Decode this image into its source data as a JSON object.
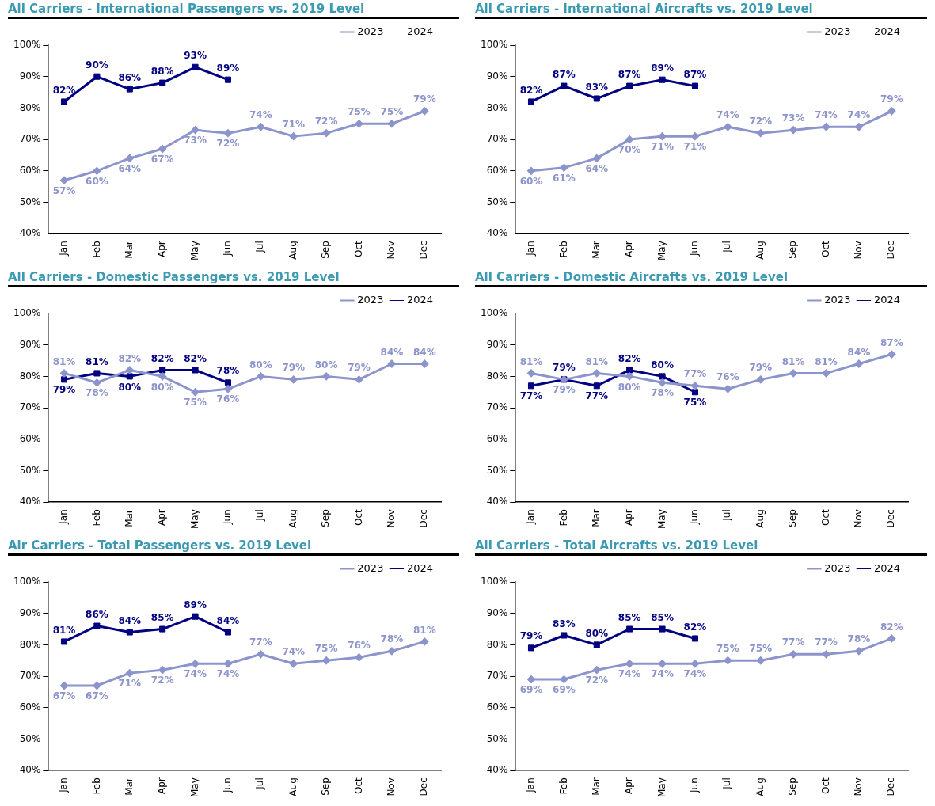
{
  "chart_data": [
    {
      "type": "line",
      "title": "All Carriers - International Passengers vs. 2019 Level",
      "categories": [
        "Jan",
        "Feb",
        "Mar",
        "Apr",
        "May",
        "Jun",
        "Jul",
        "Aug",
        "Sep",
        "Oct",
        "Nov",
        "Dec"
      ],
      "ylim": [
        40,
        100
      ],
      "yticks": [
        {
          "value": 40,
          "label": "40%"
        },
        {
          "value": 50,
          "label": "50%"
        },
        {
          "value": 60,
          "label": "60%"
        },
        {
          "value": 70,
          "label": "70%"
        },
        {
          "value": 80,
          "label": "80%"
        },
        {
          "value": 90,
          "label": "90%"
        },
        {
          "value": 100,
          "label": "100%"
        }
      ],
      "grid": false,
      "legend": "top right",
      "series": [
        {
          "name": "2023",
          "color": "#8c94cc",
          "marker": "diamond",
          "values": [
            57,
            60,
            64,
            67,
            73,
            72,
            74,
            71,
            72,
            75,
            75,
            79
          ],
          "value_labels": [
            "57%",
            "60%",
            "64%",
            "67%",
            "73%",
            "72%",
            "74%",
            "71%",
            "72%",
            "75%",
            "75%",
            "79%"
          ]
        },
        {
          "name": "2024",
          "color": "#000080",
          "marker": "square",
          "values": [
            82,
            90,
            86,
            88,
            93,
            89,
            null,
            null,
            null,
            null,
            null,
            null
          ],
          "value_labels": [
            "82%",
            "90%",
            "86%",
            "88%",
            "93%",
            "89%",
            null,
            null,
            null,
            null,
            null,
            null
          ]
        }
      ]
    },
    {
      "type": "line",
      "title": "All Carriers - International Aircrafts vs. 2019 Level",
      "categories": [
        "Jan",
        "Feb",
        "Mar",
        "Apr",
        "May",
        "Jun",
        "Jul",
        "Aug",
        "Sep",
        "Oct",
        "Nov",
        "Dec"
      ],
      "ylim": [
        40,
        100
      ],
      "yticks": [
        {
          "value": 40,
          "label": "40%"
        },
        {
          "value": 50,
          "label": "50%"
        },
        {
          "value": 60,
          "label": "60%"
        },
        {
          "value": 70,
          "label": "70%"
        },
        {
          "value": 80,
          "label": "80%"
        },
        {
          "value": 90,
          "label": "90%"
        },
        {
          "value": 100,
          "label": "100%"
        }
      ],
      "grid": false,
      "legend": "top right",
      "series": [
        {
          "name": "2023",
          "color": "#8c94cc",
          "marker": "diamond",
          "values": [
            60,
            61,
            64,
            70,
            71,
            71,
            74,
            72,
            73,
            74,
            74,
            79
          ],
          "value_labels": [
            "60%",
            "61%",
            "64%",
            "70%",
            "71%",
            "71%",
            "74%",
            "72%",
            "73%",
            "74%",
            "74%",
            "79%"
          ]
        },
        {
          "name": "2024",
          "color": "#000080",
          "marker": "square",
          "values": [
            82,
            87,
            83,
            87,
            89,
            87,
            null,
            null,
            null,
            null,
            null,
            null
          ],
          "value_labels": [
            "82%",
            "87%",
            "83%",
            "87%",
            "89%",
            "87%",
            null,
            null,
            null,
            null,
            null,
            null
          ]
        }
      ]
    },
    {
      "type": "line",
      "title": "All Carriers - Domestic Passengers vs. 2019 Level",
      "categories": [
        "Jan",
        "Feb",
        "Mar",
        "Apr",
        "May",
        "Jun",
        "Jul",
        "Aug",
        "Sep",
        "Oct",
        "Nov",
        "Dec"
      ],
      "ylim": [
        40,
        100
      ],
      "yticks": [
        {
          "value": 40,
          "label": "40%"
        },
        {
          "value": 50,
          "label": "50%"
        },
        {
          "value": 60,
          "label": "60%"
        },
        {
          "value": 70,
          "label": "70%"
        },
        {
          "value": 80,
          "label": "80%"
        },
        {
          "value": 90,
          "label": "90%"
        },
        {
          "value": 100,
          "label": "100%"
        }
      ],
      "grid": false,
      "legend": "top right",
      "series": [
        {
          "name": "2023",
          "color": "#8c94cc",
          "marker": "diamond",
          "values": [
            81,
            78,
            82,
            80,
            75,
            76,
            80,
            79,
            80,
            79,
            84,
            84
          ],
          "value_labels": [
            "81%",
            "78%",
            "82%",
            "80%",
            "75%",
            "76%",
            "80%",
            "79%",
            "80%",
            "79%",
            "84%",
            "84%"
          ]
        },
        {
          "name": "2024",
          "color": "#000080",
          "marker": "square",
          "values": [
            79,
            81,
            80,
            82,
            82,
            78,
            null,
            null,
            null,
            null,
            null,
            null
          ],
          "value_labels": [
            "79%",
            "81%",
            "80%",
            "82%",
            "82%",
            "78%",
            null,
            null,
            null,
            null,
            null,
            null
          ]
        }
      ]
    },
    {
      "type": "line",
      "title": "All Carriers - Domestic Aircrafts vs. 2019 Level",
      "categories": [
        "Jan",
        "Feb",
        "Mar",
        "Apr",
        "May",
        "Jun",
        "Jul",
        "Aug",
        "Sep",
        "Oct",
        "Nov",
        "Dec"
      ],
      "ylim": [
        40,
        100
      ],
      "yticks": [
        {
          "value": 40,
          "label": "40%"
        },
        {
          "value": 50,
          "label": "50%"
        },
        {
          "value": 60,
          "label": "60%"
        },
        {
          "value": 70,
          "label": "70%"
        },
        {
          "value": 80,
          "label": "80%"
        },
        {
          "value": 90,
          "label": "90%"
        },
        {
          "value": 100,
          "label": "100%"
        }
      ],
      "grid": false,
      "legend": "top right",
      "series": [
        {
          "name": "2023",
          "color": "#8c94cc",
          "marker": "diamond",
          "values": [
            81,
            79,
            81,
            80,
            78,
            77,
            76,
            79,
            81,
            81,
            84,
            87
          ],
          "value_labels": [
            "81%",
            "79%",
            "81%",
            "80%",
            "78%",
            "77%",
            "76%",
            "79%",
            "81%",
            "81%",
            "84%",
            "87%"
          ]
        },
        {
          "name": "2024",
          "color": "#000080",
          "marker": "square",
          "values": [
            77,
            79,
            77,
            82,
            80,
            75,
            null,
            null,
            null,
            null,
            null,
            null
          ],
          "value_labels": [
            "77%",
            "79%",
            "77%",
            "82%",
            "80%",
            "75%",
            null,
            null,
            null,
            null,
            null,
            null
          ]
        }
      ]
    },
    {
      "type": "line",
      "title": "Air Carriers - Total Passengers vs. 2019 Level",
      "categories": [
        "Jan",
        "Feb",
        "Mar",
        "Apr",
        "May",
        "Jun",
        "Jul",
        "Aug",
        "Sep",
        "Oct",
        "Nov",
        "Dec"
      ],
      "ylim": [
        40,
        100
      ],
      "yticks": [
        {
          "value": 40,
          "label": "40%"
        },
        {
          "value": 50,
          "label": "50%"
        },
        {
          "value": 60,
          "label": "60%"
        },
        {
          "value": 70,
          "label": "70%"
        },
        {
          "value": 80,
          "label": "80%"
        },
        {
          "value": 90,
          "label": "90%"
        },
        {
          "value": 100,
          "label": "100%"
        }
      ],
      "grid": false,
      "legend": "top right",
      "series": [
        {
          "name": "2023",
          "color": "#8c94cc",
          "marker": "diamond",
          "values": [
            67,
            67,
            71,
            72,
            74,
            74,
            77,
            74,
            75,
            76,
            78,
            81
          ],
          "value_labels": [
            "67%",
            "67%",
            "71%",
            "72%",
            "74%",
            "74%",
            "77%",
            "74%",
            "75%",
            "76%",
            "78%",
            "81%"
          ]
        },
        {
          "name": "2024",
          "color": "#000080",
          "marker": "square",
          "values": [
            81,
            86,
            84,
            85,
            89,
            84,
            null,
            null,
            null,
            null,
            null,
            null
          ],
          "value_labels": [
            "81%",
            "86%",
            "84%",
            "85%",
            "89%",
            "84%",
            null,
            null,
            null,
            null,
            null,
            null
          ]
        }
      ]
    },
    {
      "type": "line",
      "title": "All Carriers - Total Aircrafts vs. 2019 Level",
      "categories": [
        "Jan",
        "Feb",
        "Mar",
        "Apr",
        "May",
        "Jun",
        "Jul",
        "Aug",
        "Sep",
        "Oct",
        "Nov",
        "Dec"
      ],
      "ylim": [
        40,
        100
      ],
      "yticks": [
        {
          "value": 40,
          "label": "40%"
        },
        {
          "value": 50,
          "label": "50%"
        },
        {
          "value": 60,
          "label": "60%"
        },
        {
          "value": 70,
          "label": "70%"
        },
        {
          "value": 80,
          "label": "80%"
        },
        {
          "value": 90,
          "label": "90%"
        },
        {
          "value": 100,
          "label": "100%"
        }
      ],
      "grid": false,
      "legend": "top right",
      "series": [
        {
          "name": "2023",
          "color": "#8c94cc",
          "marker": "diamond",
          "values": [
            69,
            69,
            72,
            74,
            74,
            74,
            75,
            75,
            77,
            77,
            78,
            82
          ],
          "value_labels": [
            "69%",
            "69%",
            "72%",
            "74%",
            "74%",
            "74%",
            "75%",
            "75%",
            "77%",
            "77%",
            "78%",
            "82%"
          ]
        },
        {
          "name": "2024",
          "color": "#000080",
          "marker": "square",
          "values": [
            79,
            83,
            80,
            85,
            85,
            82,
            null,
            null,
            null,
            null,
            null,
            null
          ],
          "value_labels": [
            "79%",
            "83%",
            "80%",
            "85%",
            "85%",
            "82%",
            null,
            null,
            null,
            null,
            null,
            null
          ]
        }
      ]
    }
  ]
}
